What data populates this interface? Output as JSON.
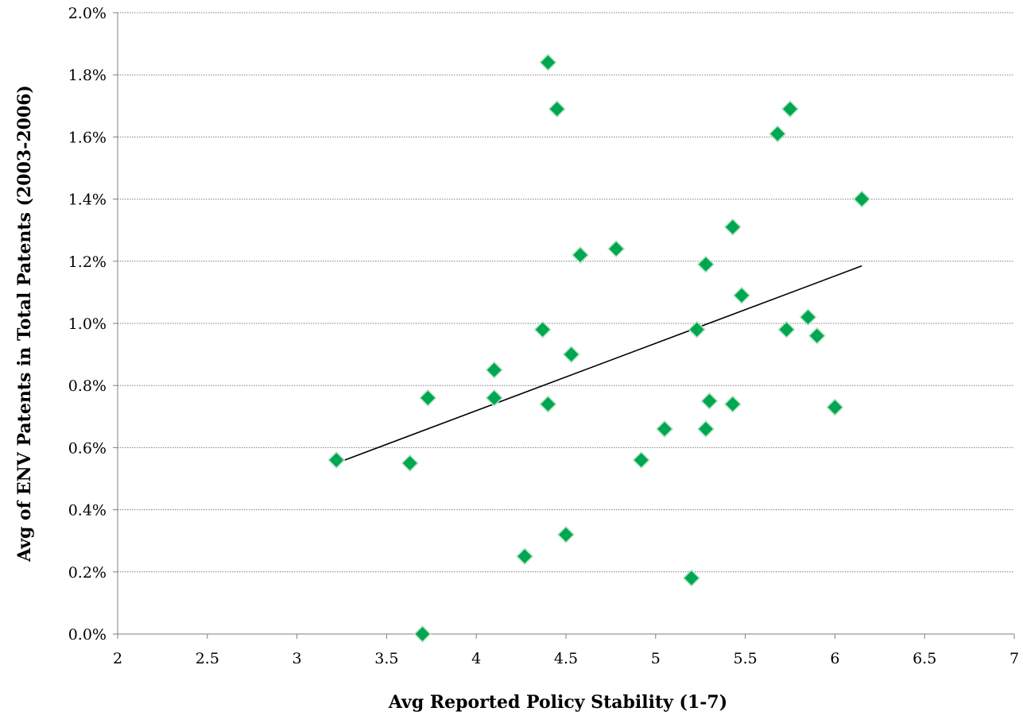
{
  "chart_data": {
    "type": "scatter",
    "title": "",
    "xlabel": "Avg Reported Policy Stability (1-7)",
    "ylabel": "Avg of ENV Patents in Total Patents (2003-2006)",
    "xlim": [
      2,
      7
    ],
    "ylim": [
      0,
      2.0
    ],
    "x_ticks": [
      {
        "value": 2,
        "label": "2"
      },
      {
        "value": 2.5,
        "label": "2.5"
      },
      {
        "value": 3,
        "label": "3"
      },
      {
        "value": 3.5,
        "label": "3.5"
      },
      {
        "value": 4,
        "label": "4"
      },
      {
        "value": 4.5,
        "label": "4.5"
      },
      {
        "value": 5,
        "label": "5"
      },
      {
        "value": 5.5,
        "label": "5.5"
      },
      {
        "value": 6,
        "label": "6"
      },
      {
        "value": 6.5,
        "label": "6.5"
      },
      {
        "value": 7,
        "label": "7"
      }
    ],
    "y_ticks": [
      {
        "value": 0.0,
        "label": "0.0%"
      },
      {
        "value": 0.2,
        "label": "0.2%"
      },
      {
        "value": 0.4,
        "label": "0.4%"
      },
      {
        "value": 0.6,
        "label": "0.6%"
      },
      {
        "value": 0.8,
        "label": "0.8%"
      },
      {
        "value": 1.0,
        "label": "1.0%"
      },
      {
        "value": 1.2,
        "label": "1.2%"
      },
      {
        "value": 1.4,
        "label": "1.4%"
      },
      {
        "value": 1.6,
        "label": "1.6%"
      },
      {
        "value": 1.8,
        "label": "1.8%"
      },
      {
        "value": 2.0,
        "label": "2.0%"
      }
    ],
    "grid": "horizontal, dotted",
    "legend": "none",
    "marker": "diamond",
    "colors": {
      "marker_fill": "#00A651",
      "marker_stroke": "#B8E6C4",
      "trendline": "#000000",
      "grid": "#7F7F7F",
      "axis": "#7F7F7F"
    },
    "series": [
      {
        "points": [
          {
            "x": 3.22,
            "y": 0.56
          },
          {
            "x": 3.63,
            "y": 0.55
          },
          {
            "x": 3.7,
            "y": 0.0
          },
          {
            "x": 3.73,
            "y": 0.76
          },
          {
            "x": 4.1,
            "y": 0.85
          },
          {
            "x": 4.1,
            "y": 0.76
          },
          {
            "x": 4.27,
            "y": 0.25
          },
          {
            "x": 4.37,
            "y": 0.98
          },
          {
            "x": 4.4,
            "y": 1.84
          },
          {
            "x": 4.4,
            "y": 0.74
          },
          {
            "x": 4.45,
            "y": 1.69
          },
          {
            "x": 4.5,
            "y": 0.32
          },
          {
            "x": 4.53,
            "y": 0.9
          },
          {
            "x": 4.58,
            "y": 1.22
          },
          {
            "x": 4.78,
            "y": 1.24
          },
          {
            "x": 4.92,
            "y": 0.56
          },
          {
            "x": 5.05,
            "y": 0.66
          },
          {
            "x": 5.2,
            "y": 0.18
          },
          {
            "x": 5.23,
            "y": 0.98
          },
          {
            "x": 5.28,
            "y": 1.19
          },
          {
            "x": 5.28,
            "y": 0.66
          },
          {
            "x": 5.3,
            "y": 0.75
          },
          {
            "x": 5.43,
            "y": 1.31
          },
          {
            "x": 5.43,
            "y": 0.74
          },
          {
            "x": 5.48,
            "y": 1.09
          },
          {
            "x": 5.68,
            "y": 1.61
          },
          {
            "x": 5.73,
            "y": 0.98
          },
          {
            "x": 5.75,
            "y": 1.69
          },
          {
            "x": 5.85,
            "y": 1.02
          },
          {
            "x": 5.9,
            "y": 0.96
          },
          {
            "x": 6.0,
            "y": 0.73
          },
          {
            "x": 6.15,
            "y": 1.4
          }
        ]
      }
    ],
    "trendline": {
      "type": "linear",
      "x_start": 3.22,
      "y_start": 0.55,
      "x_end": 6.15,
      "y_end": 1.185
    }
  }
}
